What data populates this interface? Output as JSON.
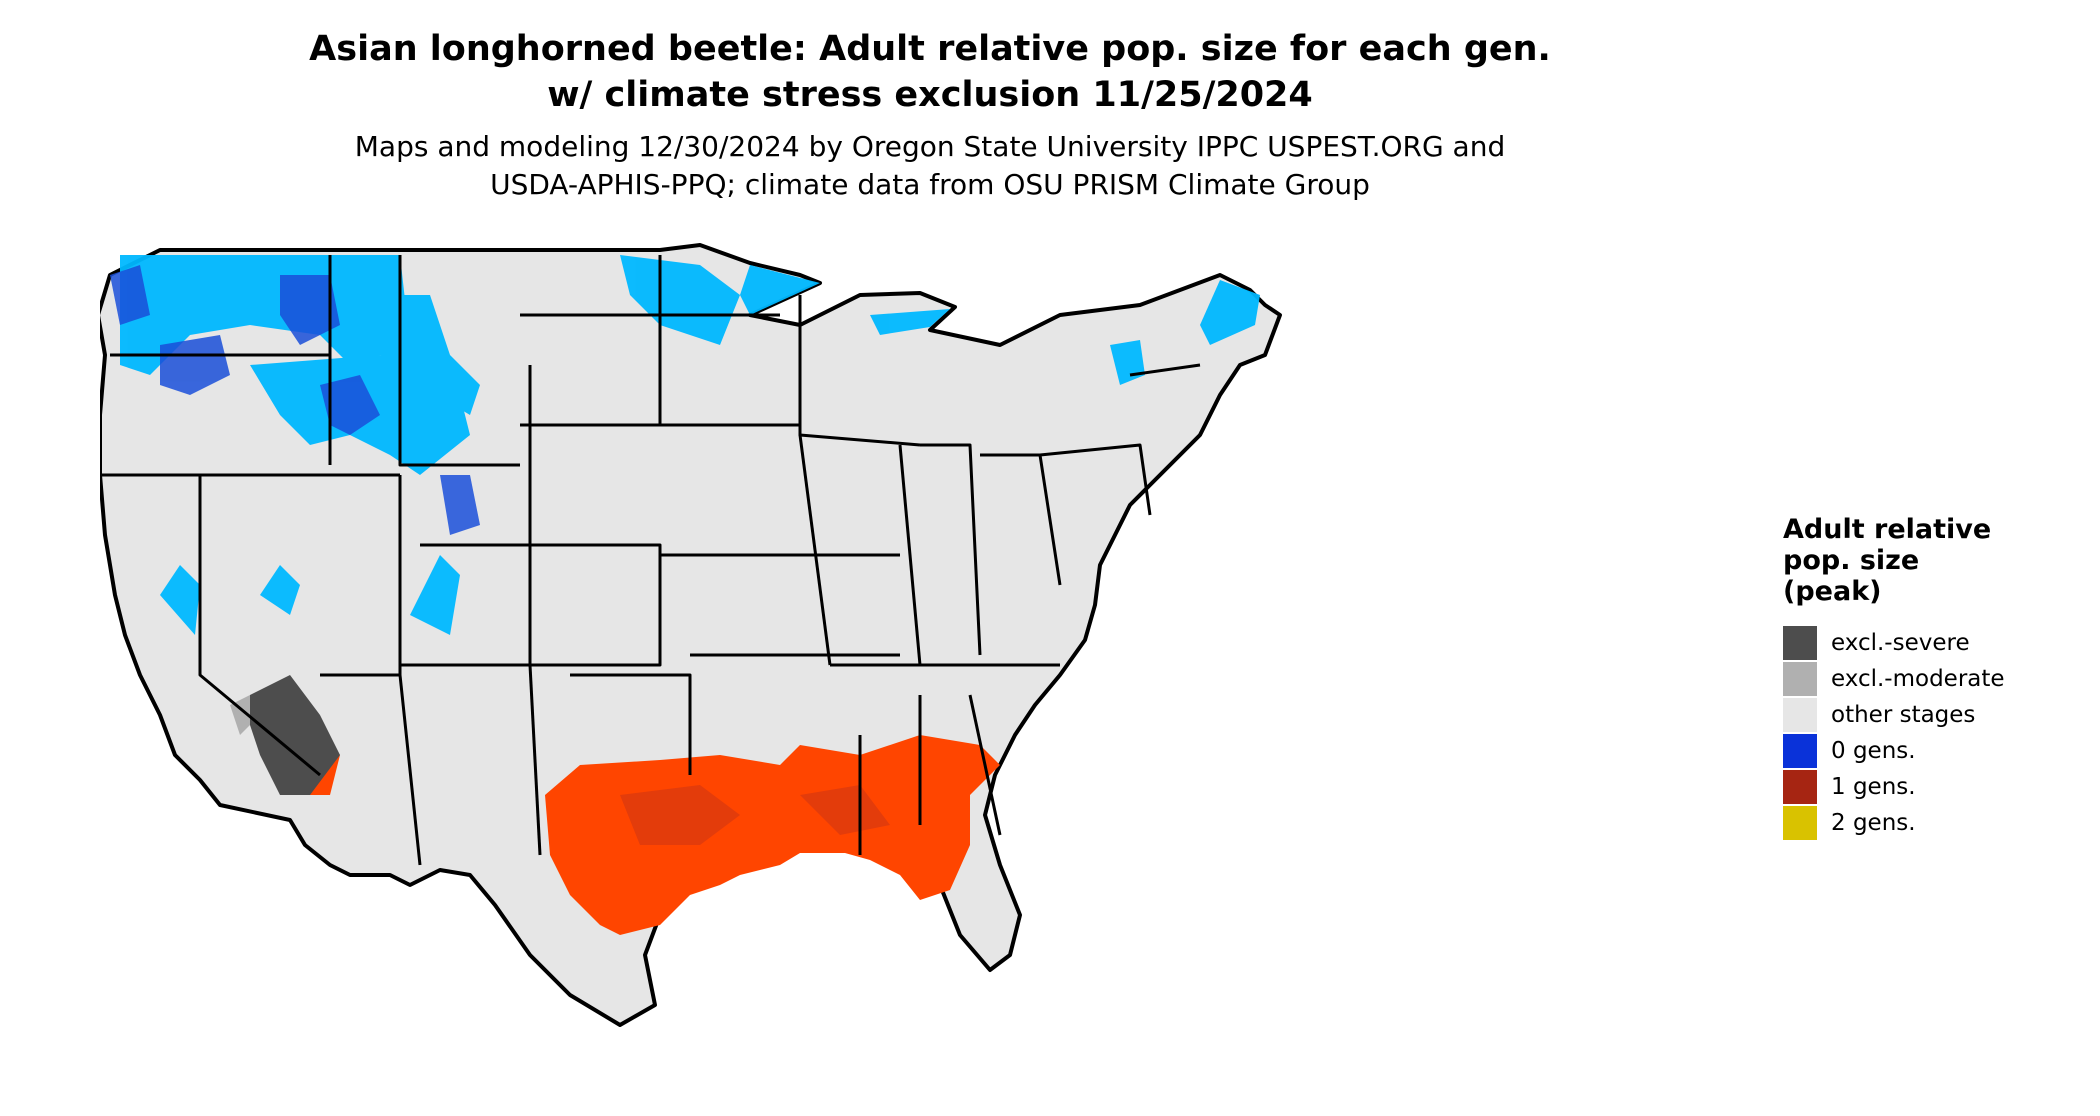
{
  "title": {
    "line1": "Asian longhorned beetle: Adult relative pop. size for each gen.",
    "line2": "w/ climate stress exclusion 11/25/2024"
  },
  "subtitle": {
    "line1": "Maps and modeling 12/30/2024 by Oregon State University IPPC USPEST.ORG and",
    "line2": "USDA-APHIS-PPQ; climate data from OSU PRISM Climate Group"
  },
  "legend": {
    "title_lines": [
      "Adult relative",
      "pop. size",
      "(peak)"
    ],
    "items": [
      {
        "label": "excl.-severe",
        "color": "#4d4d4d"
      },
      {
        "label": "excl.-moderate",
        "color": "#b0b0b0"
      },
      {
        "label": "other stages",
        "color": "#e6e6e6"
      },
      {
        "label": "0 gens.",
        "color": "#0a32d9"
      },
      {
        "label": "1 gens.",
        "color": "#a62512"
      },
      {
        "label": "2 gens.",
        "color": "#d9c200"
      }
    ]
  },
  "map": {
    "land_color": "#e6e6e6",
    "border_color": "#000000",
    "cold_zone_color": "#00b8ff",
    "cold_zone_dark_color": "#1a4fd9",
    "warm_zone_color": "#ff4500",
    "warm_zone_dark_color": "#d93a0f",
    "excluded_color": "#4d4d4d"
  }
}
